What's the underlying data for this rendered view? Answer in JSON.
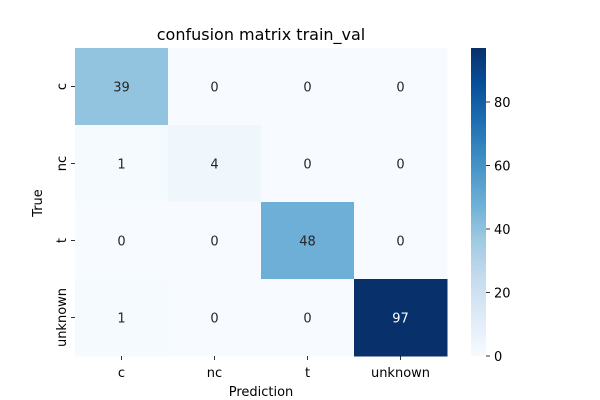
{
  "chart_data": {
    "type": "heatmap",
    "title": "confusion matrix train_val",
    "xlabel": "Prediction",
    "ylabel": "True",
    "x_categories": [
      "c",
      "nc",
      "t",
      "unknown"
    ],
    "y_categories": [
      "c",
      "nc",
      "t",
      "unknown"
    ],
    "values": [
      [
        39,
        0,
        0,
        0
      ],
      [
        1,
        4,
        0,
        0
      ],
      [
        0,
        0,
        48,
        0
      ],
      [
        1,
        0,
        0,
        97
      ]
    ],
    "colormap": "Blues",
    "colorbar": {
      "range": [
        0,
        97
      ],
      "ticks": [
        0,
        20,
        40,
        60,
        80
      ],
      "low_color": "#f7fbff",
      "high_color": "#08306b"
    }
  }
}
